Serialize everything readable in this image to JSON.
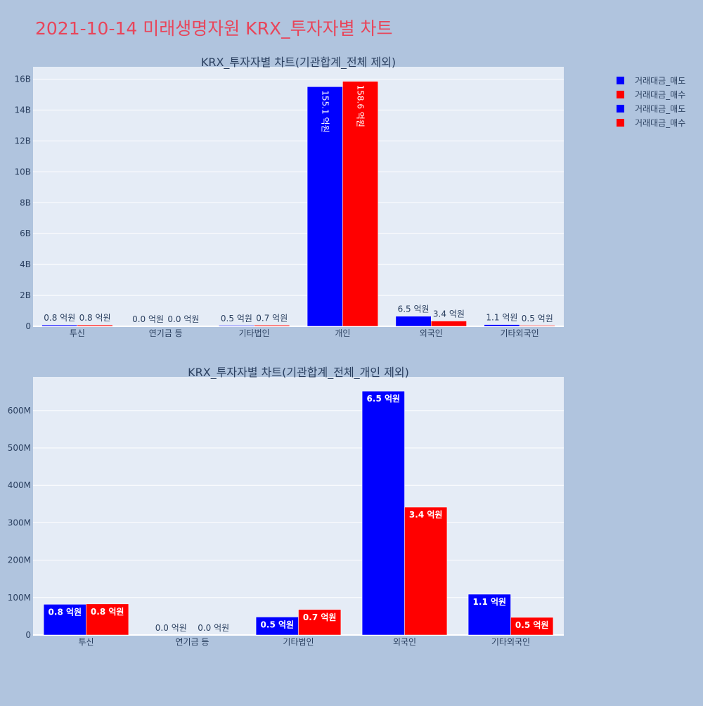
{
  "page_title": "2021-10-14 미래생명자원 KRX_투자자별 차트",
  "colors": {
    "background": "#b0c4de",
    "plot_bg": "#e5ecf6",
    "title": "#e8455a",
    "sell": "#0000ff",
    "buy": "#ff0000",
    "text": "#2a3f5f"
  },
  "legend": {
    "placement": "top-right",
    "items": [
      {
        "label": "거래대금_매도",
        "color": "#0000ff"
      },
      {
        "label": "거래대금_매수",
        "color": "#ff0000"
      },
      {
        "label": "거래대금_매도",
        "color": "#0000ff"
      },
      {
        "label": "거래대금_매수",
        "color": "#ff0000"
      }
    ]
  },
  "chart_data": [
    {
      "type": "bar",
      "title": "KRX_투자자별 차트(기관합계_전체 제외)",
      "categories": [
        "투신",
        "연기금 등",
        "기타법인",
        "개인",
        "외국인",
        "기타외국인"
      ],
      "series": [
        {
          "name": "거래대금_매도",
          "color": "#0000ff",
          "values": [
            80000000,
            0,
            50000000,
            15510000000,
            650000000,
            110000000
          ],
          "labels": [
            "0.8 억원",
            "0.0 억원",
            "0.5 억원",
            "155.1 억원",
            "6.5 억원",
            "1.1 억원"
          ]
        },
        {
          "name": "거래대금_매수",
          "color": "#ff0000",
          "values": [
            80000000,
            0,
            70000000,
            15860000000,
            340000000,
            50000000
          ],
          "labels": [
            "0.8 억원",
            "0.0 억원",
            "0.7 억원",
            "158.6 억원",
            "3.4 억원",
            "0.5 억원"
          ]
        }
      ],
      "ylim": [
        0,
        16800000000
      ],
      "yticks": [
        0,
        2000000000,
        4000000000,
        6000000000,
        8000000000,
        10000000000,
        12000000000,
        14000000000,
        16000000000
      ],
      "ytick_labels": [
        "0",
        "2B",
        "4B",
        "6B",
        "8B",
        "10B",
        "12B",
        "14B",
        "16B"
      ],
      "grid": true
    },
    {
      "type": "bar",
      "title": "KRX_투자자별 차트(기관합계_전체_개인 제외)",
      "categories": [
        "투신",
        "연기금 등",
        "기타법인",
        "외국인",
        "기타외국인"
      ],
      "series": [
        {
          "name": "거래대금_매도",
          "color": "#0000ff",
          "values": [
            82000000,
            0,
            48000000,
            652000000,
            109000000
          ],
          "labels": [
            "0.8 억원",
            "0.0 억원",
            "0.5 억원",
            "6.5 억원",
            "1.1 억원"
          ]
        },
        {
          "name": "거래대금_매수",
          "color": "#ff0000",
          "values": [
            83000000,
            0,
            68000000,
            342000000,
            47000000
          ],
          "labels": [
            "0.8 억원",
            "0.0 억원",
            "0.7 억원",
            "3.4 억원",
            "0.5 억원"
          ]
        }
      ],
      "ylim": [
        0,
        690000000
      ],
      "yticks": [
        0,
        100000000,
        200000000,
        300000000,
        400000000,
        500000000,
        600000000
      ],
      "ytick_labels": [
        "0",
        "100M",
        "200M",
        "300M",
        "400M",
        "500M",
        "600M"
      ],
      "grid": true
    }
  ]
}
